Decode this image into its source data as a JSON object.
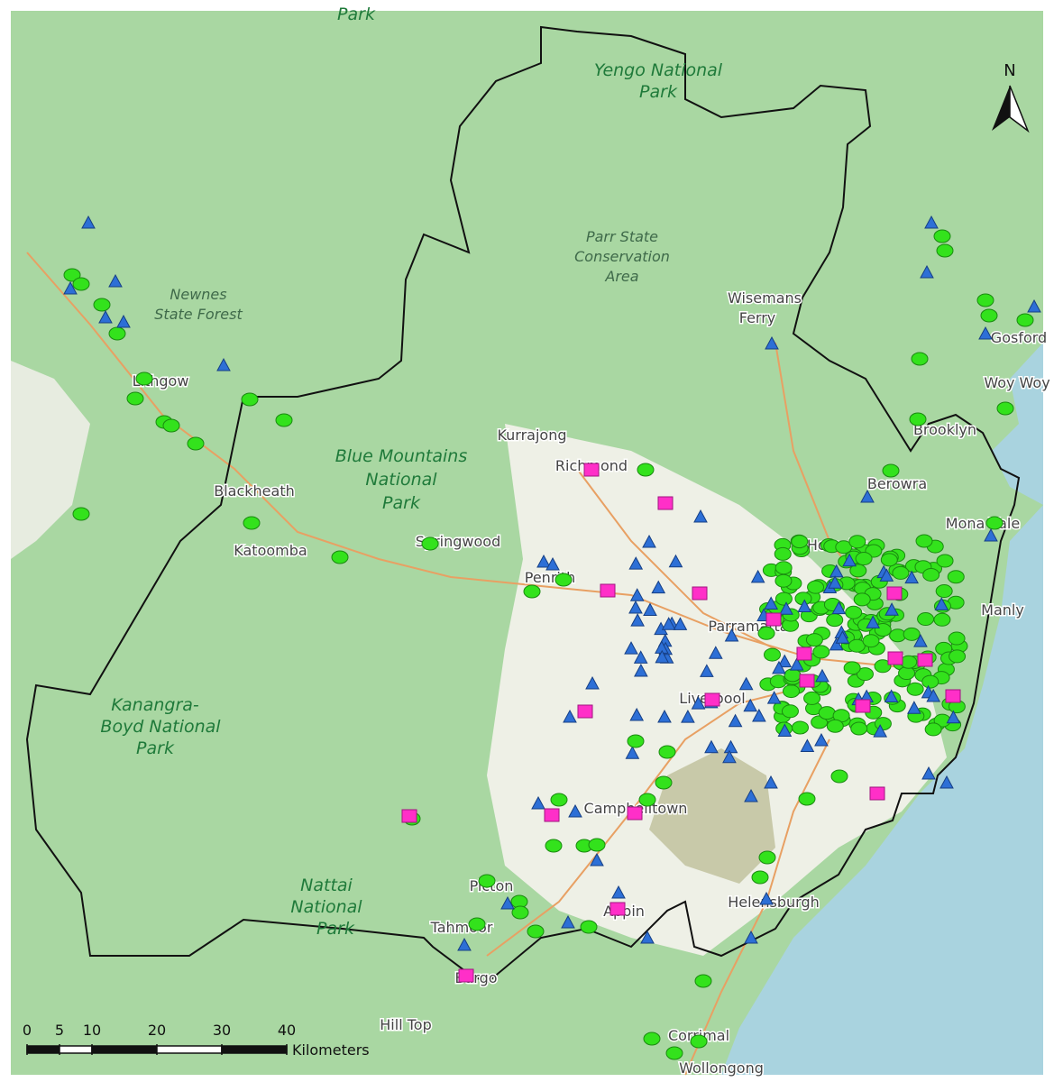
{
  "map": {
    "north": "N",
    "places": [
      "Park",
      "Yengo National",
      "Park",
      "Newnes",
      "State Forest",
      "Lithgow",
      "Parr State",
      "Conservation",
      "Area",
      "Wisemans",
      "Ferry",
      "Kurrajong",
      "Blue Mountains",
      "National",
      "Park",
      "Richmond",
      "Blackheath",
      "Katoomba",
      "Springwood",
      "Penrith",
      "Hornsby",
      "Berowra",
      "Brooklyn",
      "Mona Vale",
      "Manly",
      "Gosford",
      "Woy Woy",
      "Kanangra-",
      "Boyd National",
      "Park",
      "Liverpool",
      "Parramatta",
      "Campbelltown",
      "Picton",
      "Appin",
      "Tahmoor",
      "Helensburgh",
      "Nattai",
      "National",
      "Park",
      "Bargo",
      "Hill Top",
      "Corrimal",
      "Wollongong"
    ],
    "scale_bar": {
      "ticks": [
        0,
        5,
        10,
        20,
        30,
        40
      ],
      "unit": "Kilometers"
    }
  }
}
